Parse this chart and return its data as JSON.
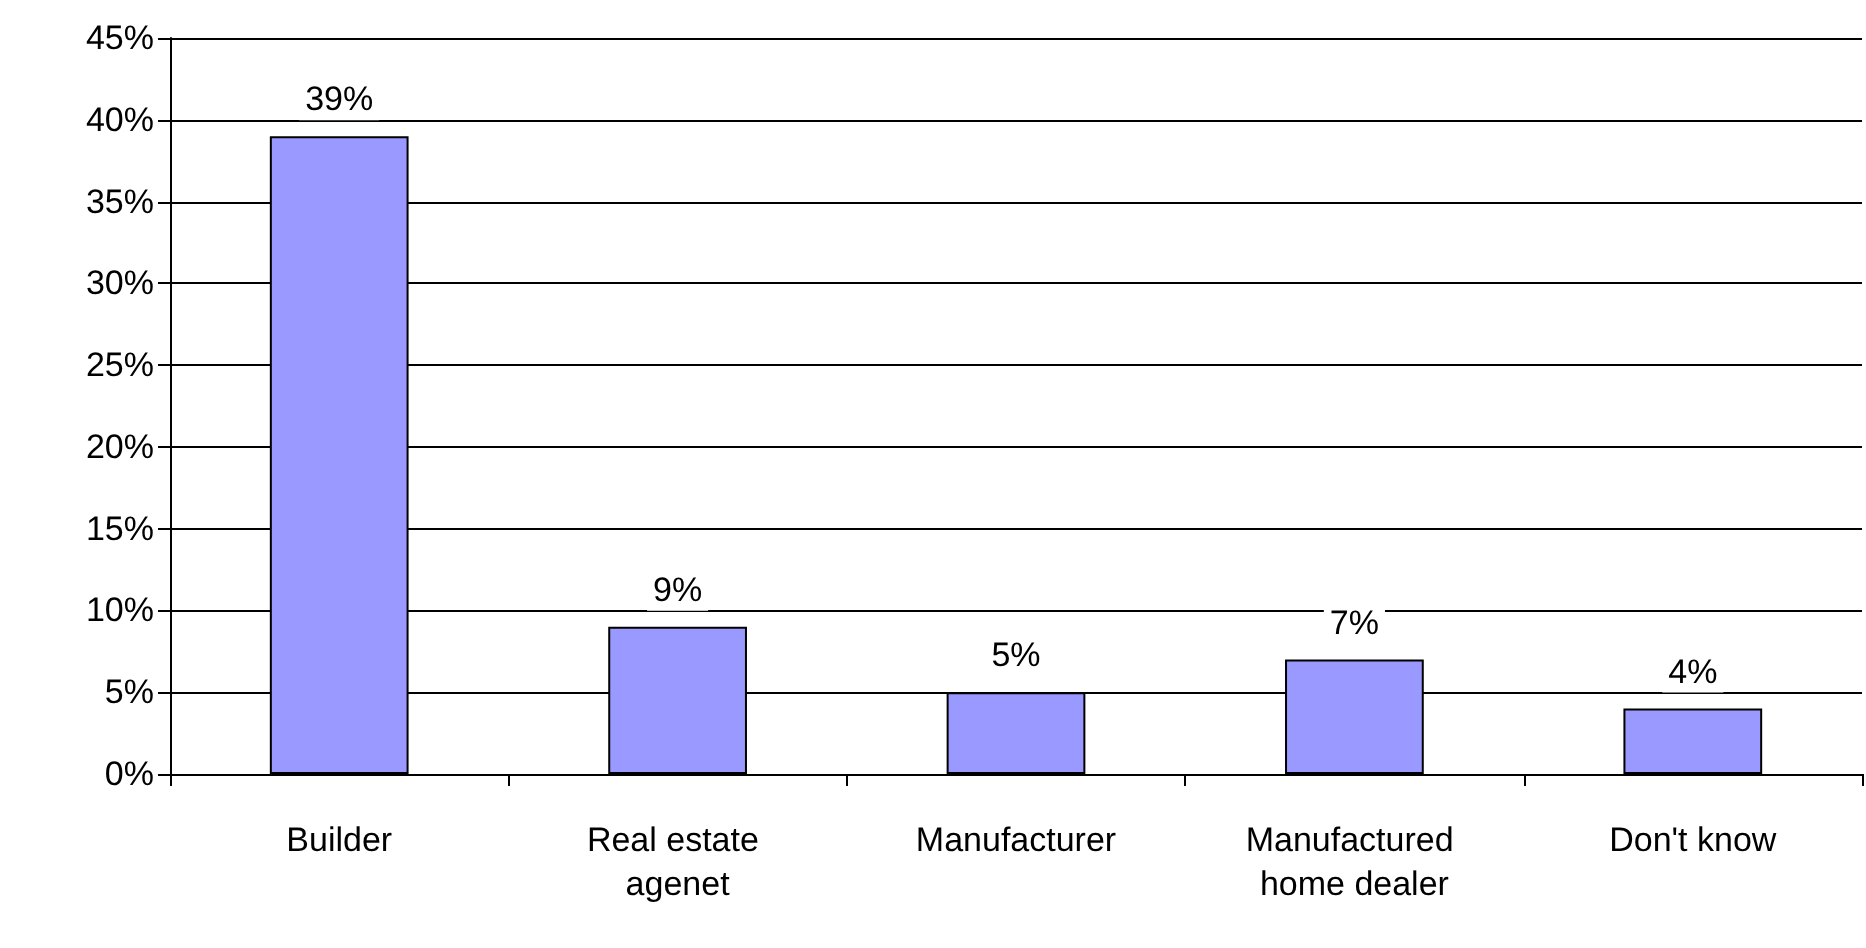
{
  "chart_data": {
    "type": "bar",
    "categories": [
      "Builder",
      "Real estate agenet",
      "Manufacturer",
      "Manufactured home dealer",
      "Don't know"
    ],
    "values": [
      39,
      9,
      5,
      7,
      4
    ],
    "color": "#9999ff",
    "value_labels": [
      "39%",
      "9%",
      "5%",
      "7%",
      "4%"
    ],
    "ylim": [
      0,
      45
    ],
    "yticks": [
      {
        "value": 0,
        "label": "0%"
      },
      {
        "value": 5,
        "label": "5%"
      },
      {
        "value": 10,
        "label": "10%"
      },
      {
        "value": 15,
        "label": "15%"
      },
      {
        "value": 20,
        "label": "20%"
      },
      {
        "value": 25,
        "label": "25%"
      },
      {
        "value": 30,
        "label": "30%"
      },
      {
        "value": 35,
        "label": "35%"
      },
      {
        "value": 40,
        "label": "40%"
      },
      {
        "value": 45,
        "label": "45%"
      }
    ],
    "grid": "y"
  }
}
